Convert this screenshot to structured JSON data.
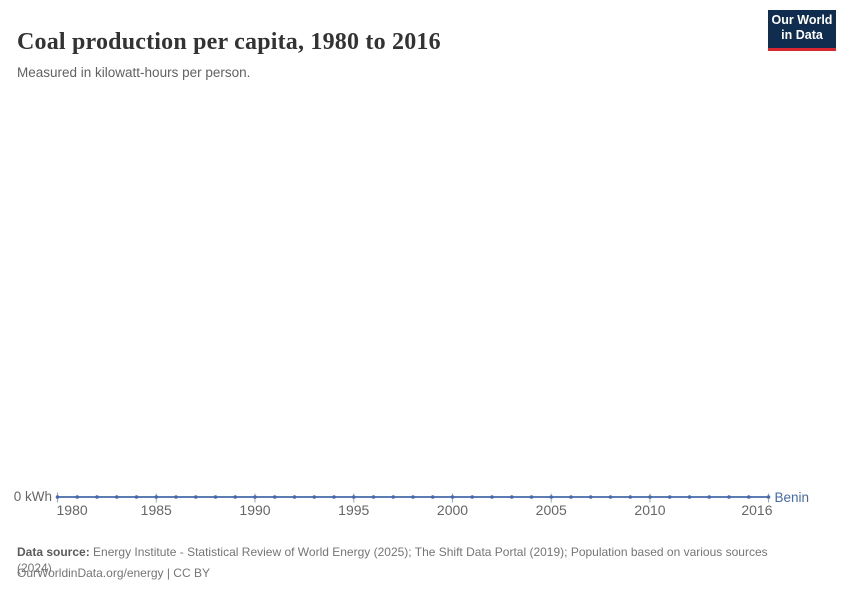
{
  "header": {
    "title": "Coal production per capita, 1980 to 2016",
    "subtitle": "Measured in kilowatt-hours per person.",
    "logo": {
      "line1": "Our World",
      "line2": "in Data",
      "bg_color": "#102d50",
      "accent_color": "#d7282f"
    }
  },
  "chart_data": {
    "type": "line",
    "title": "Coal production per capita, 1980 to 2016",
    "unit": "kilowatt-hours per person",
    "x": [
      1980,
      1981,
      1982,
      1983,
      1984,
      1985,
      1986,
      1987,
      1988,
      1989,
      1990,
      1991,
      1992,
      1993,
      1994,
      1995,
      1996,
      1997,
      1998,
      1999,
      2000,
      2001,
      2002,
      2003,
      2004,
      2005,
      2006,
      2007,
      2008,
      2009,
      2010,
      2011,
      2012,
      2013,
      2014,
      2015,
      2016
    ],
    "series": [
      {
        "name": "Benin",
        "color": "#4669a9",
        "values": [
          0,
          0,
          0,
          0,
          0,
          0,
          0,
          0,
          0,
          0,
          0,
          0,
          0,
          0,
          0,
          0,
          0,
          0,
          0,
          0,
          0,
          0,
          0,
          0,
          0,
          0,
          0,
          0,
          0,
          0,
          0,
          0,
          0,
          0,
          0,
          0,
          0
        ]
      }
    ],
    "x_tick_labels": [
      "1980",
      "1985",
      "1990",
      "1995",
      "2000",
      "2005",
      "2010",
      "2016"
    ],
    "y_axis_label": "0 kWh",
    "ylim": [
      0,
      0
    ],
    "xlim": [
      1980,
      2016
    ],
    "grid": false,
    "legend_position": "line-end",
    "tick_color": "#9aa6bc",
    "axis_label_color": "#666666"
  },
  "footer": {
    "source_label": "Data source:",
    "source_line1": "Energy Institute - Statistical Review of World Energy (2025); The Shift Data Portal (2019); Population based on various sources",
    "source_line2": "(2024)",
    "credit": "OurWorldinData.org/energy | CC BY"
  }
}
